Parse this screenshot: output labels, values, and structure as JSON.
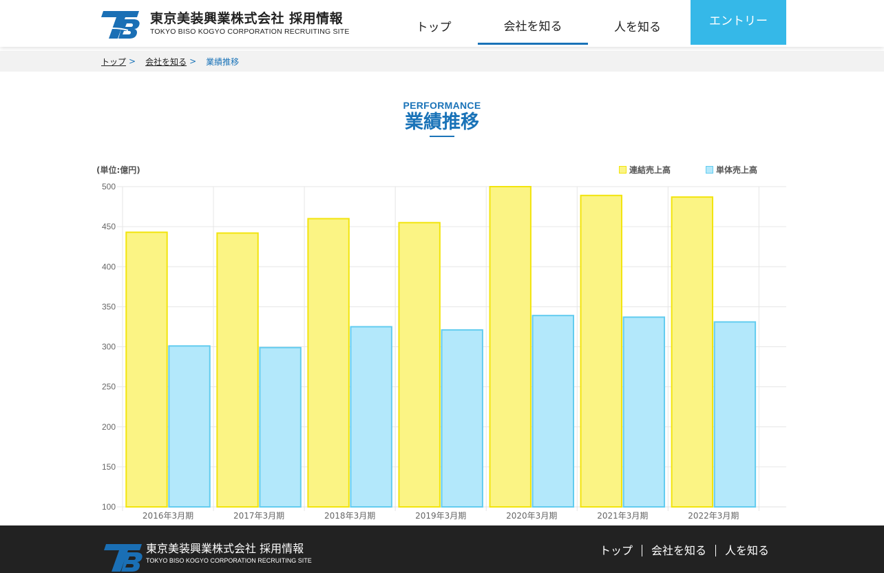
{
  "header": {
    "logo_jp": "東京美装興業株式会社 採用情報",
    "logo_en": "TOKYO BISO KOGYO CORPORATION RECRUITING SITE",
    "nav": [
      {
        "label": "トップ",
        "active": false
      },
      {
        "label": "会社を知る",
        "active": true
      },
      {
        "label": "人を知る",
        "active": false
      }
    ],
    "entry_label": "エントリー"
  },
  "breadcrumb": {
    "items": [
      "トップ",
      "会社を知る"
    ],
    "separator": ">",
    "current": "業績推移"
  },
  "section": {
    "title_en": "PERFORMANCE",
    "title_jp": "業績推移"
  },
  "colors": {
    "accent": "#1a73b8",
    "entry_bg": "#35b8e8",
    "series1_fill": "#fbf484",
    "series1_stroke": "#f2e40d",
    "series2_fill": "#b3e8fb",
    "series2_stroke": "#62ccef",
    "footer_bg": "#222222"
  },
  "chart_data": {
    "type": "bar",
    "unit_label": "(単位:億円)",
    "categories": [
      "2016年3月期",
      "2017年3月期",
      "2018年3月期",
      "2019年3月期",
      "2020年3月期",
      "2021年3月期",
      "2022年3月期"
    ],
    "series": [
      {
        "name": "連結売上高",
        "values": [
          443,
          442,
          460,
          455,
          500,
          489,
          487
        ]
      },
      {
        "name": "単体売上高",
        "values": [
          301,
          299,
          325,
          321,
          339,
          337,
          331
        ]
      }
    ],
    "ylim": [
      100,
      500
    ],
    "yticks": [
      100,
      150,
      200,
      250,
      300,
      350,
      400,
      450,
      500
    ],
    "legend_position": "top-right",
    "grid": true
  },
  "footer": {
    "logo_jp": "東京美装興業株式会社 採用情報",
    "logo_en": "TOKYO BISO KOGYO CORPORATION RECRUITING SITE",
    "nav": [
      "トップ",
      "会社を知る",
      "人を知る"
    ]
  }
}
